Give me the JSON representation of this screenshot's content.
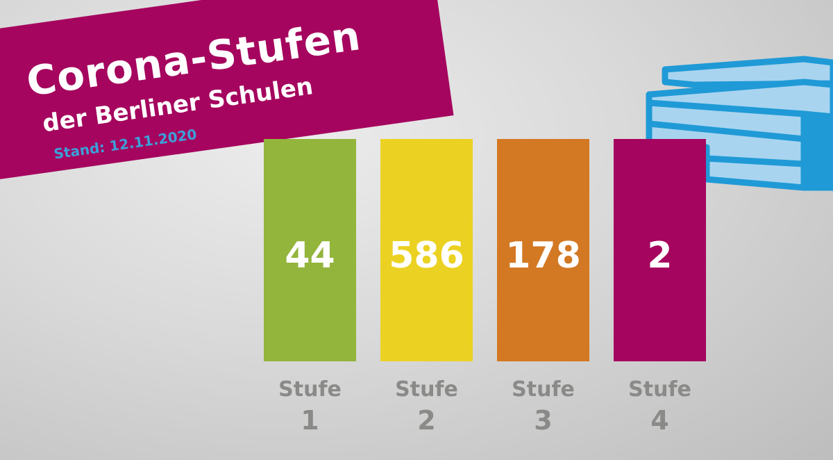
{
  "banner": {
    "title": "Corona-Stufen",
    "subtitle": "der Berliner Schulen",
    "date": "Stand: 12.11.2020",
    "background_color": "#a5055e",
    "date_color": "#3d9fd9"
  },
  "illustration": {
    "icon": "school-building-icon",
    "stroke_color": "#1f9ad6",
    "fill_color": "#a9d4ef"
  },
  "chart_data": {
    "type": "bar",
    "categories": [
      "Stufe 1",
      "Stufe 2",
      "Stufe 3",
      "Stufe 4"
    ],
    "category_lines": [
      [
        "Stufe",
        "1"
      ],
      [
        "Stufe",
        "2"
      ],
      [
        "Stufe",
        "3"
      ],
      [
        "Stufe",
        "4"
      ]
    ],
    "values": [
      44,
      586,
      178,
      2
    ],
    "value_labels": [
      "44",
      "586",
      "178",
      "2"
    ],
    "colors": [
      "#93b53c",
      "#ebd222",
      "#d37823",
      "#a5055e"
    ],
    "bar_height_encoding": "uniform"
  }
}
